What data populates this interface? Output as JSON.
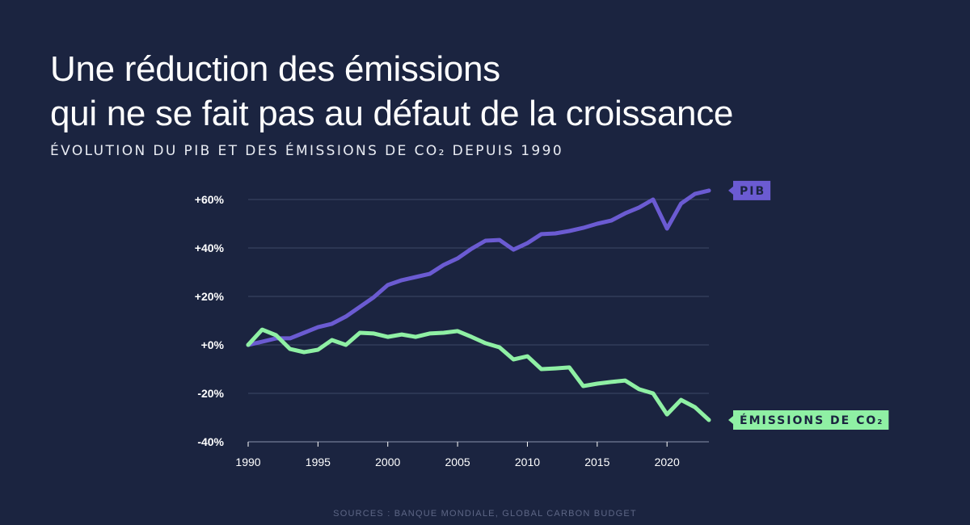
{
  "title_line1": "Une réduction des émissions",
  "title_line2": "qui ne se fait pas au défaut de la croissance",
  "subtitle": "ÉVOLUTION DU PIB ET DES ÉMISSIONS DE CO₂ DEPUIS 1990",
  "source": "SOURCES : BANQUE MONDIALE, GLOBAL CARBON BUDGET",
  "colors": {
    "background": "#1b2440",
    "pib": "#6b5bd2",
    "co2": "#8ff0a4",
    "grid": "#3e4766"
  },
  "chart_data": {
    "type": "line",
    "x": [
      1990,
      1991,
      1992,
      1993,
      1994,
      1995,
      1996,
      1997,
      1998,
      1999,
      2000,
      2001,
      2002,
      2003,
      2004,
      2005,
      2006,
      2007,
      2008,
      2009,
      2010,
      2011,
      2012,
      2013,
      2014,
      2015,
      2016,
      2017,
      2018,
      2019,
      2020,
      2021,
      2022,
      2023
    ],
    "series": [
      {
        "name": "PIB",
        "color": "#6b5bd2",
        "values": [
          0,
          1.3,
          2.7,
          2.7,
          5,
          7.3,
          8.7,
          11.7,
          15.7,
          19.7,
          24.7,
          26.7,
          28,
          29.3,
          33,
          35.7,
          39.7,
          43,
          43.3,
          39.3,
          42,
          45.7,
          46,
          47,
          48.3,
          50,
          51.3,
          54.3,
          56.7,
          60,
          48,
          58.3,
          62.3,
          63.7
        ]
      },
      {
        "name": "ÉMISSIONS DE CO₂",
        "color": "#8ff0a4",
        "values": [
          0,
          6.3,
          4,
          -1.7,
          -3,
          -2,
          2,
          0,
          5,
          4.7,
          3.3,
          4.3,
          3.3,
          4.7,
          5,
          5.7,
          3.3,
          0.7,
          -1,
          -6,
          -4.7,
          -10,
          -9.7,
          -9.3,
          -17,
          -16,
          -15.3,
          -14.7,
          -18.3,
          -20,
          -28.7,
          -22.7,
          -25.7,
          -31
        ]
      }
    ],
    "y_ticks": [
      60,
      40,
      20,
      0,
      -20,
      -40
    ],
    "y_tick_labels": [
      "+60%",
      "+40%",
      "+20%",
      "+0%",
      "-20%",
      "-40%"
    ],
    "x_ticks": [
      1990,
      1995,
      2000,
      2005,
      2010,
      2015,
      2020
    ],
    "x_tick_labels": [
      "1990",
      "1995",
      "2000",
      "2005",
      "2010",
      "2015",
      "2020"
    ],
    "ylim": [
      -40,
      60
    ],
    "xlim": [
      1990,
      2023
    ],
    "grid": true,
    "legend": "end-of-line labels"
  }
}
